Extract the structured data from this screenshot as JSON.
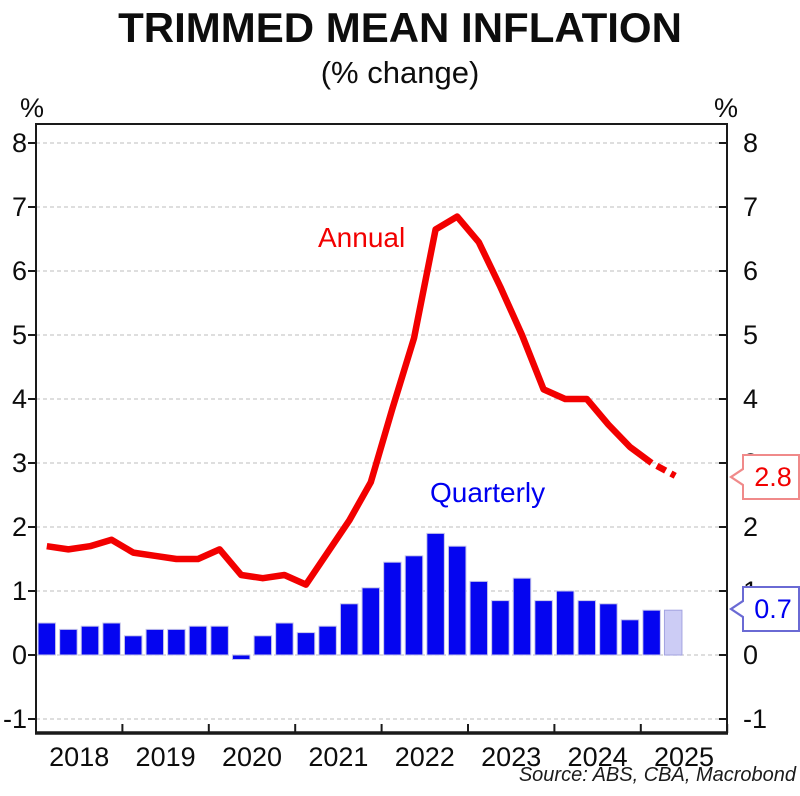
{
  "title": "TRIMMED MEAN INFLATION",
  "subtitle": "(% change)",
  "unit_left": "%",
  "unit_right": "%",
  "series_labels": {
    "annual": "Annual",
    "quarterly": "Quarterly"
  },
  "callouts": {
    "annual": "2.8",
    "quarterly": "0.7"
  },
  "source": "Source: ABS, CBA, Macrobond",
  "colors": {
    "annual_line": "#f20000",
    "quarterly_bar": "#0505f0",
    "bar_edge": "#c6c6ea",
    "forecast_bar_fill": "#ccccf5",
    "forecast_bar_edge": "#a3a3e0",
    "grid": "#c9c9c9",
    "frame": "#1a1a1a",
    "callout_annual_border": "#f08a8a",
    "callout_quarterly_border": "#6a6ad4"
  },
  "chart_data": {
    "type": "bar",
    "subtype": "bar + line combo, last point of each series is a forecast",
    "x": [
      "2018 Q1",
      "2018 Q2",
      "2018 Q3",
      "2018 Q4",
      "2019 Q1",
      "2019 Q2",
      "2019 Q3",
      "2019 Q4",
      "2020 Q1",
      "2020 Q2",
      "2020 Q3",
      "2020 Q4",
      "2021 Q1",
      "2021 Q2",
      "2021 Q3",
      "2021 Q4",
      "2022 Q1",
      "2022 Q2",
      "2022 Q3",
      "2022 Q4",
      "2023 Q1",
      "2023 Q2",
      "2023 Q3",
      "2023 Q4",
      "2024 Q1",
      "2024 Q2",
      "2024 Q3",
      "2024 Q4",
      "2025 Q1",
      "2025 Q2"
    ],
    "x_axis_tick_labels": [
      "2018",
      "2019",
      "2020",
      "2021",
      "2022",
      "2023",
      "2024",
      "2025"
    ],
    "series": [
      {
        "name": "Quarterly",
        "type": "bar",
        "forecast_last_point": true,
        "values": [
          0.5,
          0.4,
          0.45,
          0.5,
          0.3,
          0.4,
          0.4,
          0.45,
          0.45,
          -0.07,
          0.3,
          0.5,
          0.35,
          0.45,
          0.8,
          1.05,
          1.45,
          1.55,
          1.9,
          1.7,
          1.15,
          0.85,
          1.2,
          0.85,
          1.0,
          0.85,
          0.8,
          0.55,
          0.7,
          0.7
        ]
      },
      {
        "name": "Annual",
        "type": "line",
        "forecast_last_point": true,
        "values": [
          1.7,
          1.65,
          1.7,
          1.8,
          1.6,
          1.55,
          1.5,
          1.5,
          1.65,
          1.25,
          1.2,
          1.25,
          1.1,
          1.6,
          2.1,
          2.7,
          3.85,
          4.95,
          6.65,
          6.85,
          6.45,
          5.75,
          5.0,
          4.15,
          4.0,
          4.0,
          3.6,
          3.25,
          3.0,
          2.8
        ]
      }
    ],
    "y_ticks": [
      8,
      7,
      6,
      5,
      4,
      3,
      2,
      1,
      0,
      -1
    ],
    "ylim": [
      -1.22,
      8.3
    ],
    "ylabel": "%",
    "grid": "horizontal dashed gridlines at every integer",
    "legend_position": "inline text labels (Annual in red, Quarterly in blue)",
    "annotations": [
      {
        "text": "2.8",
        "refers_to": "Annual forecast 2025 Q2",
        "color": "red boxed callout on right axis"
      },
      {
        "text": "0.7",
        "refers_to": "Quarterly forecast 2025 Q2",
        "color": "blue boxed callout on right axis"
      }
    ]
  }
}
